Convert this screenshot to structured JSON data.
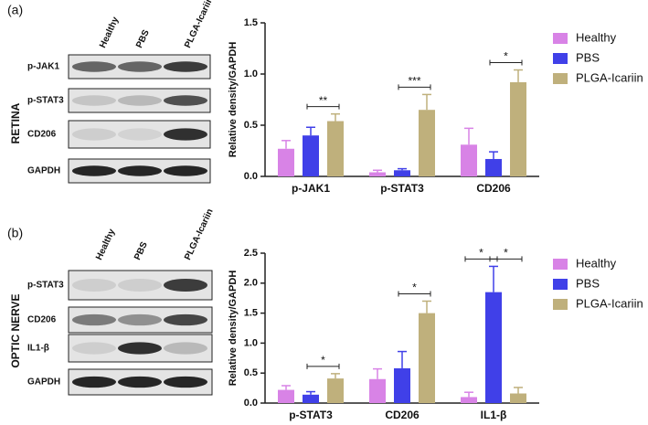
{
  "panels": [
    {
      "label": "(a)",
      "tissue": "RETINA",
      "lanes": [
        "Healthy",
        "PBS",
        "PLGA-Icariin"
      ],
      "proteins": [
        "p-JAK1",
        "p-STAT3",
        "CD206",
        "GAPDH"
      ]
    },
    {
      "label": "(b)",
      "tissue": "OPTIC NERVE",
      "lanes": [
        "Healthy",
        "PBS",
        "PLGA-Icariin"
      ],
      "proteins": [
        "p-STAT3",
        "CD206",
        "IL1-β",
        "GAPDH"
      ]
    }
  ],
  "chart_data": [
    {
      "type": "bar",
      "y_label": "Relative density/GAPDH",
      "legend": "right",
      "categories": [
        "p-JAK1",
        "p-STAT3",
        "CD206"
      ],
      "series": [
        {
          "name": "Healthy",
          "color": "#d883e6",
          "values": [
            0.27,
            0.04,
            0.31
          ],
          "errors": [
            0.08,
            0.02,
            0.16
          ]
        },
        {
          "name": "PBS",
          "color": "#4040e8",
          "values": [
            0.4,
            0.06,
            0.17
          ],
          "errors": [
            0.08,
            0.015,
            0.07
          ]
        },
        {
          "name": "PLGA-Icariin",
          "color": "#bfb07c",
          "values": [
            0.54,
            0.65,
            0.92
          ],
          "errors": [
            0.07,
            0.15,
            0.12
          ]
        }
      ],
      "ylim": [
        0,
        1.5
      ],
      "yticks": [
        {
          "value": 0,
          "label": "0.0"
        },
        0.5,
        {
          "value": 1,
          "label": "1.0"
        },
        1.5
      ],
      "annotations": [
        {
          "text": "**",
          "category": "p-JAK1",
          "between": [
            "PBS",
            "PLGA-Icariin"
          ]
        },
        {
          "text": "***",
          "category": "p-STAT3",
          "between": [
            "PBS",
            "PLGA-Icariin"
          ]
        },
        {
          "text": "*",
          "category": "CD206",
          "between": [
            "PBS",
            "PLGA-Icariin"
          ]
        }
      ]
    },
    {
      "type": "bar",
      "y_label": "Relative density/GAPDH",
      "legend": "right",
      "categories": [
        "p-STAT3",
        "CD206",
        "IL1-β"
      ],
      "series": [
        {
          "name": "Healthy",
          "color": "#d883e6",
          "values": [
            0.22,
            0.4,
            0.1
          ],
          "errors": [
            0.07,
            0.17,
            0.08
          ]
        },
        {
          "name": "PBS",
          "color": "#4040e8",
          "values": [
            0.14,
            0.58,
            1.85
          ],
          "errors": [
            0.05,
            0.28,
            0.43
          ]
        },
        {
          "name": "PLGA-Icariin",
          "color": "#bfb07c",
          "values": [
            0.41,
            1.5,
            0.16
          ],
          "errors": [
            0.08,
            0.2,
            0.1
          ]
        }
      ],
      "ylim": [
        0,
        2.5
      ],
      "yticks": [
        {
          "value": 0,
          "label": "0.0"
        },
        0.5,
        {
          "value": 1,
          "label": "1.0"
        },
        1.5,
        {
          "value": 2,
          "label": "2.0"
        },
        2.5
      ],
      "annotations": [
        {
          "text": "*",
          "category": "p-STAT3",
          "between": [
            "PBS",
            "PLGA-Icariin"
          ]
        },
        {
          "text": "*",
          "category": "CD206",
          "between": [
            "PBS",
            "PLGA-Icariin"
          ]
        },
        {
          "text": "*",
          "category": "IL1-β",
          "between": [
            "Healthy",
            "PBS"
          ]
        },
        {
          "text": "*",
          "category": "IL1-β",
          "between": [
            "PBS",
            "PLGA-Icariin"
          ]
        }
      ]
    }
  ]
}
